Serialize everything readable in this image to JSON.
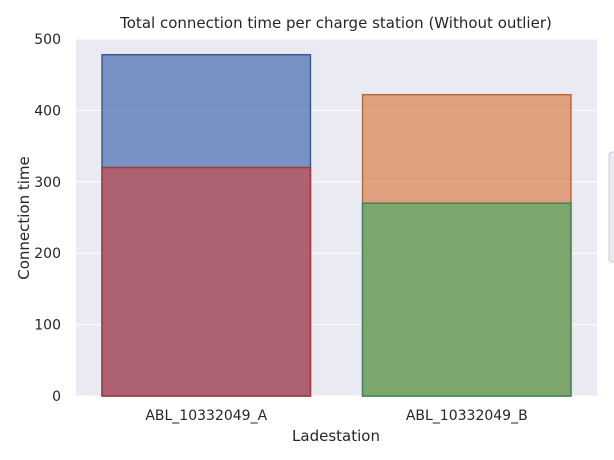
{
  "chart_data": {
    "type": "bar",
    "stacked": false,
    "overlapping": true,
    "title": "Total connection time per charge station (Without outlier)",
    "xlabel": "Ladestation",
    "ylabel": "Connection time",
    "categories": [
      "ABL_10332049_A",
      "ABL_10332049_B"
    ],
    "ylim": [
      0,
      500
    ],
    "yticks": [
      0,
      100,
      200,
      300,
      400,
      500
    ],
    "grid": true,
    "legend": "right (clipped)",
    "bars": [
      {
        "category": "ABL_10332049_A",
        "value": 478,
        "fill": "#4c72b0",
        "edge": "#3b5a8f",
        "layer": "back"
      },
      {
        "category": "ABL_10332049_A",
        "value": 320,
        "fill": "#c44e52",
        "edge": "#9c3c40",
        "layer": "front"
      },
      {
        "category": "ABL_10332049_B",
        "value": 422,
        "fill": "#dd8452",
        "edge": "#b86a3f",
        "layer": "back"
      },
      {
        "category": "ABL_10332049_B",
        "value": 270,
        "fill": "#55a868",
        "edge": "#428752",
        "layer": "front"
      }
    ]
  },
  "colors": {
    "plot_background": "#eaeaf2",
    "grid": "#ffffff",
    "text": "#262626"
  }
}
